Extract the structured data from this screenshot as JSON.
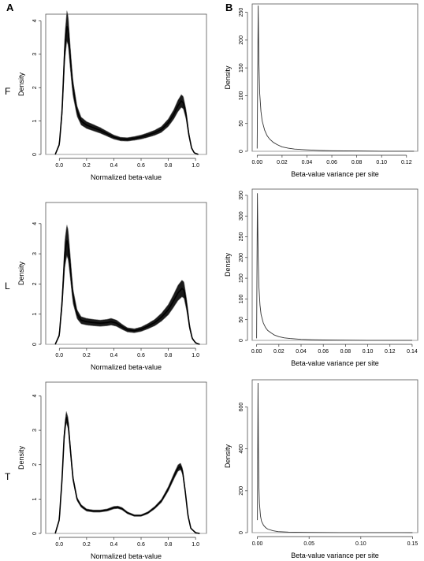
{
  "panel_letters": [
    "A",
    "B"
  ],
  "row_labels": [
    "F",
    "L",
    "T"
  ],
  "chart_data": [
    {
      "type": "line",
      "panel": "A",
      "row": "F",
      "xlabel": "Normalized beta-value",
      "ylabel": "Density",
      "xlim": [
        -0.1,
        1.08
      ],
      "ylim": [
        0,
        4.2
      ],
      "xticks": [
        "0.0",
        "0.2",
        "0.4",
        "0.6",
        "0.8",
        "1.0"
      ],
      "yticks": [
        "0",
        "1",
        "2",
        "3",
        "4"
      ],
      "grid": false,
      "series": [
        {
          "x": [
            -0.03,
            0.0,
            0.02,
            0.04,
            0.055,
            0.065,
            0.08,
            0.1,
            0.13,
            0.16,
            0.2,
            0.25,
            0.3,
            0.35,
            0.4,
            0.45,
            0.5,
            0.55,
            0.6,
            0.65,
            0.7,
            0.75,
            0.8,
            0.84,
            0.87,
            0.895,
            0.91,
            0.93,
            0.95,
            0.97,
            0.99,
            1.02
          ],
          "y": [
            0.0,
            0.3,
            1.3,
            3.2,
            3.85,
            3.7,
            2.9,
            2.0,
            1.3,
            1.0,
            0.88,
            0.8,
            0.72,
            0.62,
            0.52,
            0.46,
            0.45,
            0.48,
            0.52,
            0.58,
            0.65,
            0.75,
            0.95,
            1.2,
            1.45,
            1.6,
            1.55,
            1.2,
            0.6,
            0.2,
            0.05,
            0.0
          ],
          "spread": 0.12
        }
      ]
    },
    {
      "type": "line",
      "panel": "B",
      "row": "F",
      "xlabel": "Beta-value variance per site",
      "ylabel": "Density",
      "xlim": [
        -0.004,
        0.129
      ],
      "ylim": [
        0,
        265
      ],
      "xticks": [
        "0.00",
        "0.02",
        "0.04",
        "0.06",
        "0.08",
        "0.10",
        "0.12"
      ],
      "xtick_values": [
        0,
        0.02,
        0.04,
        0.06,
        0.08,
        0.1,
        0.12
      ],
      "yticks": [
        "0",
        "50",
        "100",
        "150",
        "200",
        "250"
      ],
      "ytick_values": [
        0,
        50,
        100,
        150,
        200,
        250
      ],
      "grid": false,
      "series": [
        {
          "x": [
            0.0,
            0.0008,
            0.0014,
            0.002,
            0.003,
            0.004,
            0.006,
            0.008,
            0.01,
            0.013,
            0.016,
            0.02,
            0.025,
            0.03,
            0.04,
            0.05,
            0.06,
            0.08,
            0.1,
            0.126
          ],
          "y": [
            5,
            262,
            160,
            105,
            72,
            55,
            38,
            28,
            22,
            16,
            12,
            8,
            5.5,
            4,
            2.5,
            1.5,
            1,
            0.5,
            0.2,
            0.1
          ]
        }
      ]
    },
    {
      "type": "line",
      "panel": "A",
      "row": "L",
      "xlabel": "Normalized beta-value",
      "ylabel": "Density",
      "xlim": [
        -0.1,
        1.08
      ],
      "ylim": [
        0,
        4.7
      ],
      "xticks": [
        "0.0",
        "0.2",
        "0.4",
        "0.6",
        "0.8",
        "1.0"
      ],
      "yticks": [
        "0",
        "1",
        "2",
        "3",
        "4"
      ],
      "grid": false,
      "series": [
        {
          "x": [
            -0.03,
            0.0,
            0.02,
            0.04,
            0.055,
            0.065,
            0.08,
            0.1,
            0.13,
            0.16,
            0.2,
            0.25,
            0.3,
            0.35,
            0.38,
            0.42,
            0.46,
            0.5,
            0.55,
            0.6,
            0.65,
            0.7,
            0.75,
            0.8,
            0.84,
            0.87,
            0.9,
            0.915,
            0.935,
            0.955,
            0.975,
            1.0,
            1.03
          ],
          "y": [
            0.0,
            0.3,
            1.4,
            3.0,
            3.45,
            3.3,
            2.6,
            1.6,
            1.0,
            0.8,
            0.75,
            0.72,
            0.7,
            0.72,
            0.75,
            0.7,
            0.58,
            0.48,
            0.45,
            0.5,
            0.6,
            0.72,
            0.9,
            1.15,
            1.45,
            1.7,
            1.85,
            1.8,
            1.3,
            0.6,
            0.2,
            0.05,
            0.0
          ],
          "spread": 0.15
        }
      ]
    },
    {
      "type": "line",
      "panel": "B",
      "row": "L",
      "xlabel": "Beta-value variance per site",
      "ylabel": "Density",
      "xlim": [
        -0.004,
        0.145
      ],
      "ylim": [
        0,
        365
      ],
      "xticks": [
        "0.00",
        "0.02",
        "0.04",
        "0.06",
        "0.08",
        "0.10",
        "0.12",
        "0.14"
      ],
      "xtick_values": [
        0,
        0.02,
        0.04,
        0.06,
        0.08,
        0.1,
        0.12,
        0.14
      ],
      "yticks": [
        "0",
        "50",
        "100",
        "150",
        "200",
        "250",
        "300",
        "350"
      ],
      "ytick_values": [
        0,
        50,
        100,
        150,
        200,
        250,
        300,
        350
      ],
      "grid": false,
      "series": [
        {
          "x": [
            0.0,
            0.0007,
            0.0013,
            0.002,
            0.003,
            0.004,
            0.006,
            0.008,
            0.01,
            0.013,
            0.016,
            0.02,
            0.025,
            0.03,
            0.04,
            0.05,
            0.06,
            0.08,
            0.1,
            0.12,
            0.14
          ],
          "y": [
            5,
            355,
            210,
            130,
            85,
            62,
            42,
            31,
            24,
            18,
            13,
            9,
            6,
            4.5,
            2.5,
            1.5,
            1,
            0.5,
            0.2,
            0.1,
            0.1
          ]
        }
      ]
    },
    {
      "type": "line",
      "panel": "A",
      "row": "T",
      "xlabel": "Normalized beta-value",
      "ylabel": "Density",
      "xlim": [
        -0.1,
        1.08
      ],
      "ylim": [
        0,
        4.4
      ],
      "xticks": [
        "0.0",
        "0.2",
        "0.4",
        "0.6",
        "0.8",
        "1.0"
      ],
      "yticks": [
        "0",
        "1",
        "2",
        "3",
        "4"
      ],
      "grid": false,
      "series": [
        {
          "x": [
            -0.03,
            0.0,
            0.02,
            0.035,
            0.05,
            0.065,
            0.08,
            0.1,
            0.13,
            0.16,
            0.2,
            0.25,
            0.3,
            0.35,
            0.4,
            0.43,
            0.46,
            0.5,
            0.55,
            0.6,
            0.65,
            0.7,
            0.75,
            0.8,
            0.84,
            0.87,
            0.89,
            0.905,
            0.925,
            0.945,
            0.965,
            1.0,
            1.03
          ],
          "y": [
            0.0,
            0.4,
            1.6,
            2.8,
            3.4,
            3.2,
            2.5,
            1.6,
            1.0,
            0.8,
            0.68,
            0.65,
            0.65,
            0.68,
            0.75,
            0.76,
            0.72,
            0.6,
            0.52,
            0.52,
            0.6,
            0.75,
            0.95,
            1.3,
            1.65,
            1.9,
            1.95,
            1.8,
            1.2,
            0.5,
            0.15,
            0.02,
            0.0
          ],
          "spread": 0.05
        }
      ]
    },
    {
      "type": "line",
      "panel": "B",
      "row": "T",
      "xlabel": "Beta-value variance per site",
      "ylabel": "Density",
      "xlim": [
        -0.005,
        0.155
      ],
      "ylim": [
        0,
        730
      ],
      "xticks": [
        "0.00",
        "0.05",
        "0.10",
        "0.15"
      ],
      "xtick_values": [
        0,
        0.05,
        0.1,
        0.15
      ],
      "yticks": [
        "0",
        "200",
        "400",
        "600"
      ],
      "ytick_values": [
        0,
        200,
        400,
        600
      ],
      "grid": false,
      "series": [
        {
          "x": [
            0.0,
            0.0006,
            0.001,
            0.0015,
            0.002,
            0.003,
            0.004,
            0.006,
            0.008,
            0.01,
            0.015,
            0.02,
            0.03,
            0.05,
            0.08,
            0.1,
            0.15
          ],
          "y": [
            60,
            715,
            400,
            220,
            140,
            80,
            55,
            35,
            24,
            17,
            9,
            5,
            2.5,
            1,
            0.5,
            0.2,
            0.1
          ]
        }
      ]
    }
  ]
}
